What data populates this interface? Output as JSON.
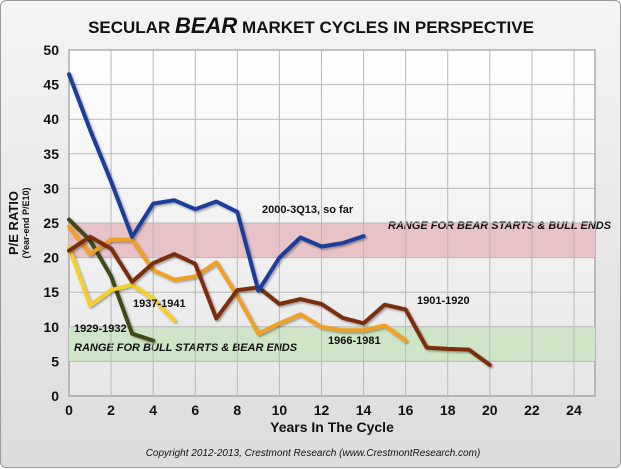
{
  "chart_data": {
    "type": "line",
    "title_parts": [
      "SECULAR ",
      "BEAR",
      " MARKET CYCLES IN PERSPECTIVE"
    ],
    "ylabel": "P/E RATIO",
    "ylabel_sub": "(Year-end P/E10)",
    "xlabel": "Years In The Cycle",
    "xlim": [
      0,
      25
    ],
    "ylim": [
      0,
      50
    ],
    "xticks": [
      0,
      2,
      4,
      6,
      8,
      10,
      12,
      14,
      16,
      18,
      20,
      22,
      24
    ],
    "yticks": [
      0,
      5,
      10,
      15,
      20,
      25,
      30,
      35,
      40,
      45,
      50
    ],
    "grid": true,
    "bands": [
      {
        "label": "RANGE FOR BEAR STARTS & BULL ENDS",
        "y0": 20,
        "y1": 25,
        "color": "#e7c3c7"
      },
      {
        "label": "RANGE FOR BULL STARTS & BEAR ENDS",
        "y0": 5,
        "y1": 10,
        "color": "#cfe5c7"
      }
    ],
    "series": [
      {
        "name": "2000-3Q13, so far",
        "color": "#1f3d99",
        "x": [
          0,
          1,
          2,
          3,
          4,
          5,
          6,
          7,
          8,
          9,
          10,
          11,
          12,
          13,
          14
        ],
        "y": [
          46.5,
          38.5,
          31,
          23,
          27.8,
          28.3,
          27,
          28.1,
          26.6,
          15.2,
          20,
          22.9,
          21.6,
          22.1,
          23.1
        ]
      },
      {
        "name": "1901-1920",
        "color": "#7a2e0f",
        "x": [
          0,
          1,
          2,
          3,
          4,
          5,
          6,
          7,
          8,
          9,
          10,
          11,
          12,
          13,
          14,
          15,
          16,
          17,
          18,
          19,
          20
        ],
        "y": [
          21,
          23,
          21.3,
          16.5,
          19.2,
          20.5,
          19.1,
          11.2,
          15.3,
          15.7,
          13.3,
          14,
          13.3,
          11.3,
          10.5,
          13.2,
          12.5,
          7,
          6.8,
          6.7,
          4.5
        ]
      },
      {
        "name": "1966-1981",
        "color": "#f0a020",
        "x": [
          0,
          1,
          2,
          3,
          4,
          5,
          6,
          7,
          8,
          9,
          10,
          11,
          12,
          13,
          14,
          15,
          16
        ],
        "y": [
          24.5,
          20.5,
          22.6,
          22.6,
          18.2,
          16.8,
          17.3,
          19.3,
          14.5,
          9,
          10.5,
          11.8,
          10,
          9.5,
          9.5,
          10.2,
          8
        ]
      },
      {
        "name": "1937-1941",
        "color": "#f5d02c",
        "x": [
          0,
          1,
          2,
          3,
          4,
          5
        ],
        "y": [
          21.5,
          13.1,
          15.3,
          16.1,
          14.1,
          10.9
        ]
      },
      {
        "name": "1929-1932",
        "color": "#3d4a14",
        "x": [
          0,
          1,
          2,
          3,
          4
        ],
        "y": [
          25.5,
          22.5,
          17.3,
          9,
          8
        ]
      }
    ],
    "copyright": "Copyright 2012-2013, Crestmont Research (www.CrestmontResearch.com)"
  }
}
